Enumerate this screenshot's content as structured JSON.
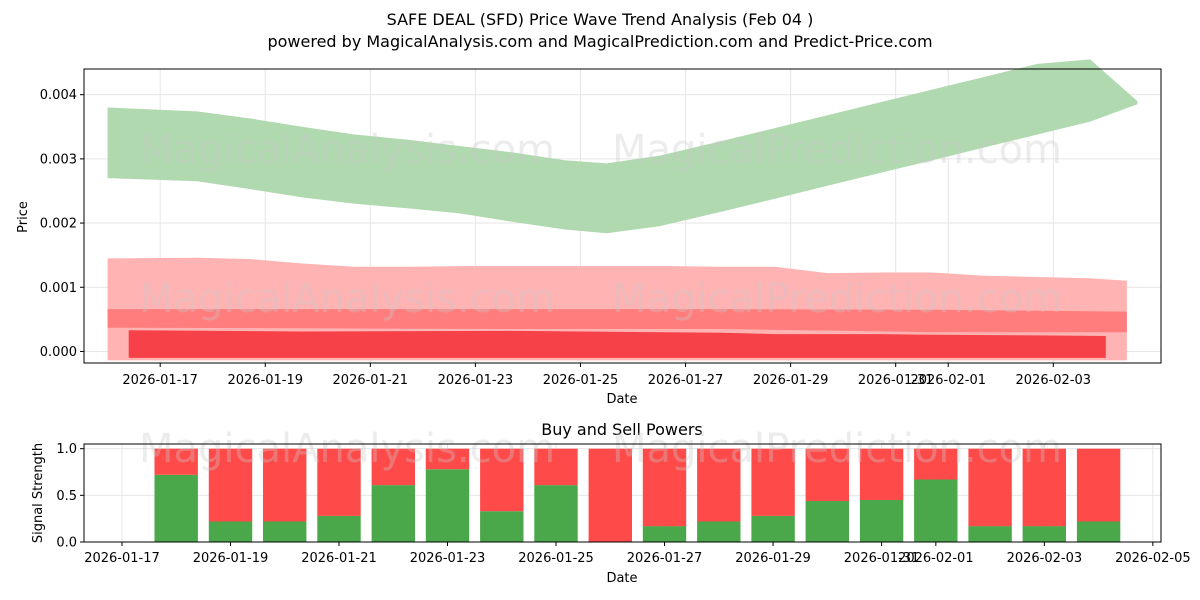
{
  "title_line1": "SAFE DEAL (SFD) Price Wave Trend Analysis (Feb 04 )",
  "title_line2": "powered by MagicalAnalysis.com and MagicalPrediction.com and Predict-Price.com",
  "watermarks": [
    "MagicalAnalysis.com",
    "MagicalPrediction.com"
  ],
  "colors": {
    "green_band": "#b0d9b0",
    "red_band_light": "#ffb3b3",
    "red_band_mid": "#ff6b6b",
    "red_band_dark": "#f52d35",
    "buy": "#4aa84a",
    "sell": "#ff4a4a"
  },
  "chart_data": [
    {
      "type": "area",
      "title": "",
      "xlabel": "Date",
      "ylabel": "Price",
      "xlim": [
        "2026-01-15.6",
        "2026-02-05.1"
      ],
      "ylim": [
        -0.00018,
        0.0044
      ],
      "yticks": [
        0.0,
        0.001,
        0.002,
        0.003,
        0.004
      ],
      "ytick_labels": [
        "0.000",
        "0.001",
        "0.002",
        "0.003",
        "0.004"
      ],
      "xtick_labels": [
        "2026-01-17",
        "2026-01-19",
        "2026-01-21",
        "2026-01-23",
        "2026-01-25",
        "2026-01-27",
        "2026-01-29",
        "2026-01-31",
        "2026-02-01",
        "2026-02-03"
      ],
      "xtick_positions": [
        1.0,
        3.0,
        5.0,
        7.0,
        9.0,
        11.0,
        13.0,
        15.0,
        16.0,
        18.0
      ],
      "grid": true,
      "series": [
        {
          "name": "green-wave",
          "x": [
            0.0,
            1.7,
            2.7,
            3.7,
            4.7,
            5.7,
            6.7,
            7.7,
            8.7,
            9.5,
            10.5,
            11.7,
            12.7,
            13.7,
            14.7,
            15.7,
            16.7,
            17.7,
            18.7,
            19.6
          ],
          "upper": [
            0.0038,
            0.00374,
            0.00363,
            0.0035,
            0.00338,
            0.0033,
            0.0032,
            0.0031,
            0.00298,
            0.00293,
            0.00305,
            0.00328,
            0.00348,
            0.00368,
            0.00388,
            0.00408,
            0.00428,
            0.00448,
            0.00455,
            0.0039
          ],
          "lower": [
            0.0027,
            0.00265,
            0.00253,
            0.0024,
            0.0023,
            0.00223,
            0.00215,
            0.00202,
            0.0019,
            0.00184,
            0.00195,
            0.00218,
            0.00238,
            0.00258,
            0.00278,
            0.00298,
            0.00318,
            0.00338,
            0.00358,
            0.00385
          ]
        },
        {
          "name": "red-wave-light",
          "x": [
            0.0,
            1.7,
            2.7,
            3.7,
            4.7,
            5.7,
            6.7,
            7.7,
            8.7,
            9.7,
            10.7,
            11.7,
            12.7,
            13.7,
            14.7,
            15.7,
            16.7,
            17.7,
            18.7,
            19.4
          ],
          "upper": [
            0.00145,
            0.00146,
            0.00144,
            0.00137,
            0.00132,
            0.00132,
            0.00133,
            0.00133,
            0.00133,
            0.00133,
            0.00133,
            0.00132,
            0.00132,
            0.00122,
            0.00123,
            0.00123,
            0.00118,
            0.00116,
            0.00114,
            0.0011
          ],
          "lower": [
            -0.00014,
            -0.00014,
            -0.00014,
            -0.00014,
            -0.00014,
            -0.00014,
            -0.00014,
            -0.00014,
            -0.00014,
            -0.00014,
            -0.00014,
            -0.00014,
            -0.00014,
            -0.00014,
            -0.00014,
            -0.00014,
            -0.00014,
            -0.00014,
            -0.00014,
            -0.00014
          ]
        },
        {
          "name": "red-wave-mid",
          "x": [
            0.0,
            3.7,
            7.7,
            11.7,
            15.7,
            19.4
          ],
          "upper": [
            0.00066,
            0.00066,
            0.00066,
            0.00066,
            0.00065,
            0.00062
          ],
          "lower": [
            0.00037,
            0.00036,
            0.00035,
            0.00035,
            0.0003,
            0.0003
          ]
        },
        {
          "name": "red-wave-dark",
          "x": [
            0.4,
            3.7,
            7.7,
            11.7,
            12.7,
            14.7,
            15.7,
            17.7,
            19.0
          ],
          "upper": [
            0.00033,
            0.00031,
            0.00032,
            0.00029,
            0.00027,
            0.00027,
            0.00026,
            0.00025,
            0.00024
          ],
          "lower": [
            -0.0001,
            -0.0001,
            -0.0001,
            -0.0001,
            -0.0001,
            -0.0001,
            -0.0001,
            -0.0001,
            -0.0001
          ]
        }
      ]
    },
    {
      "type": "bar",
      "title": "Buy and Sell Powers",
      "xlabel": "Date",
      "ylabel": "Signal Strength",
      "ylim": [
        0.0,
        1.05
      ],
      "yticks": [
        0.0,
        0.5,
        1.0
      ],
      "ytick_labels": [
        "0.0",
        "0.5",
        "1.0"
      ],
      "xtick_labels": [
        "2026-01-17",
        "2026-01-19",
        "2026-01-21",
        "2026-01-23",
        "2026-01-25",
        "2026-01-27",
        "2026-01-29",
        "2026-01-31",
        "2026-02-01",
        "2026-02-03",
        "2026-02-05"
      ],
      "xtick_positions": [
        0.0,
        2.0,
        4.0,
        6.0,
        8.0,
        10.0,
        12.0,
        14.0,
        15.0,
        17.0,
        19.0
      ],
      "grid": true,
      "categories": [
        "2026-01-18",
        "2026-01-19",
        "2026-01-20",
        "2026-01-21",
        "2026-01-22",
        "2026-01-23",
        "2026-01-24",
        "2026-01-25",
        "2026-01-26",
        "2026-01-27",
        "2026-01-28",
        "2026-01-29",
        "2026-01-30",
        "2026-01-31",
        "2026-02-01",
        "2026-02-02",
        "2026-02-03",
        "2026-02-04"
      ],
      "bar_positions": [
        1.0,
        2.0,
        3.0,
        4.0,
        5.0,
        6.0,
        7.0,
        8.0,
        9.0,
        10.0,
        11.0,
        12.0,
        13.0,
        14.0,
        15.0,
        16.0,
        17.0,
        18.0
      ],
      "series": [
        {
          "name": "Buy",
          "values": [
            0.72,
            0.22,
            0.22,
            0.28,
            0.61,
            0.78,
            0.33,
            0.61,
            0.0,
            0.17,
            0.22,
            0.28,
            0.44,
            0.45,
            0.67,
            0.17,
            0.17,
            0.22
          ]
        },
        {
          "name": "Sell",
          "values": [
            0.28,
            0.78,
            0.78,
            0.72,
            0.39,
            0.22,
            0.67,
            0.39,
            1.0,
            0.83,
            0.78,
            0.72,
            0.56,
            0.55,
            0.33,
            0.83,
            0.83,
            0.78
          ]
        }
      ]
    }
  ]
}
